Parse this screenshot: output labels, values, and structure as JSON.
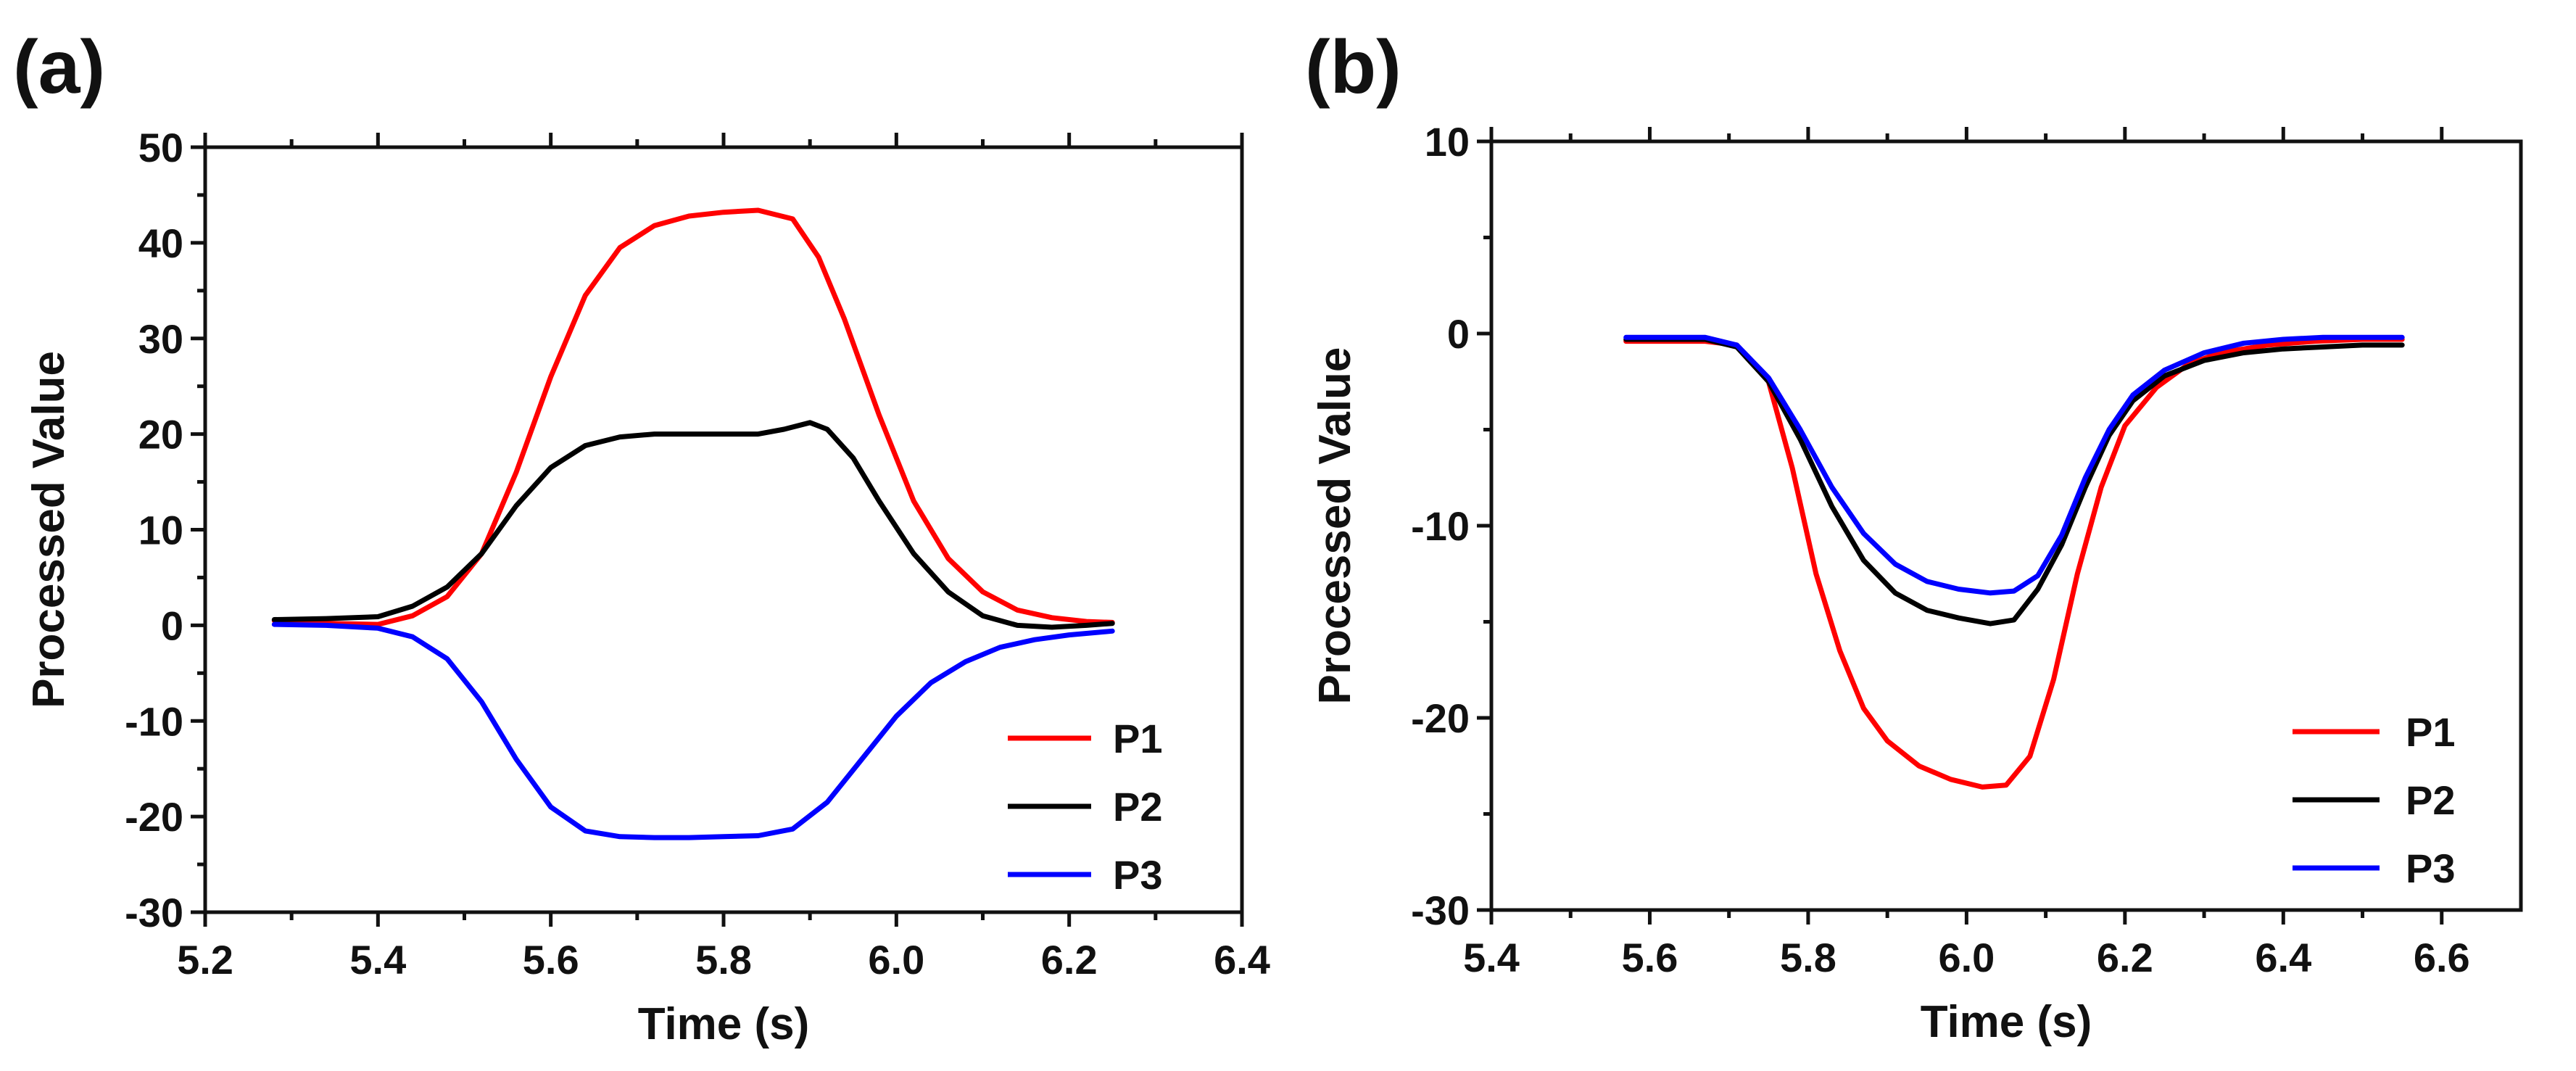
{
  "chart_data": [
    {
      "panel_label": "(a)",
      "type": "line",
      "xlabel": "Time (s)",
      "ylabel": "Processed Value",
      "xlim": [
        5.2,
        6.4
      ],
      "ylim": [
        -30,
        50
      ],
      "xticks": [
        5.2,
        5.4,
        5.6,
        5.8,
        6.0,
        6.2,
        6.4
      ],
      "xtick_labels": [
        "5.2",
        "5.4",
        "5.6",
        "5.8",
        "6.0",
        "6.2",
        "6.4"
      ],
      "yticks": [
        -30,
        -20,
        -10,
        0,
        10,
        20,
        30,
        40,
        50
      ],
      "ytick_labels": [
        "-30",
        "-20",
        "-10",
        "0",
        "10",
        "20",
        "30",
        "40",
        "50"
      ],
      "legend_position": "bottom-right",
      "series": [
        {
          "name": "P1",
          "color": "#ff0000",
          "x": [
            5.28,
            5.34,
            5.4,
            5.44,
            5.48,
            5.52,
            5.56,
            5.6,
            5.64,
            5.68,
            5.72,
            5.76,
            5.8,
            5.84,
            5.88,
            5.91,
            5.94,
            5.98,
            6.02,
            6.06,
            6.1,
            6.14,
            6.18,
            6.22,
            6.25
          ],
          "y": [
            0.5,
            0.2,
            0.1,
            1.0,
            3.0,
            7.5,
            16.0,
            26.0,
            34.5,
            39.5,
            41.8,
            42.8,
            43.2,
            43.4,
            42.5,
            38.5,
            32.0,
            22.0,
            13.0,
            7.0,
            3.5,
            1.6,
            0.8,
            0.4,
            0.3
          ]
        },
        {
          "name": "P2",
          "color": "#000000",
          "x": [
            5.28,
            5.34,
            5.4,
            5.44,
            5.48,
            5.52,
            5.56,
            5.6,
            5.64,
            5.68,
            5.72,
            5.76,
            5.8,
            5.84,
            5.87,
            5.9,
            5.92,
            5.95,
            5.98,
            6.02,
            6.06,
            6.1,
            6.14,
            6.18,
            6.22,
            6.25
          ],
          "y": [
            0.6,
            0.7,
            0.9,
            2.0,
            4.0,
            7.5,
            12.5,
            16.5,
            18.8,
            19.7,
            20.0,
            20.0,
            20.0,
            20.0,
            20.5,
            21.2,
            20.5,
            17.5,
            13.0,
            7.5,
            3.5,
            1.0,
            0.0,
            -0.2,
            0.0,
            0.2
          ]
        },
        {
          "name": "P3",
          "color": "#0000ff",
          "x": [
            5.28,
            5.34,
            5.4,
            5.44,
            5.48,
            5.52,
            5.56,
            5.6,
            5.64,
            5.68,
            5.72,
            5.76,
            5.8,
            5.84,
            5.88,
            5.92,
            5.96,
            6.0,
            6.04,
            6.08,
            6.12,
            6.16,
            6.2,
            6.25
          ],
          "y": [
            0.1,
            0.0,
            -0.3,
            -1.2,
            -3.5,
            -8.0,
            -14.0,
            -19.0,
            -21.5,
            -22.1,
            -22.2,
            -22.2,
            -22.1,
            -22.0,
            -21.3,
            -18.5,
            -14.0,
            -9.5,
            -6.0,
            -3.8,
            -2.3,
            -1.5,
            -1.0,
            -0.6
          ]
        }
      ]
    },
    {
      "panel_label": "(b)",
      "type": "line",
      "xlabel": "Time (s)",
      "ylabel": "Processed Value",
      "xlim": [
        5.4,
        6.7
      ],
      "ylim": [
        -30,
        10
      ],
      "xticks": [
        5.4,
        5.6,
        5.8,
        6.0,
        6.2,
        6.4,
        6.6
      ],
      "xtick_labels": [
        "5.4",
        "5.6",
        "5.8",
        "6.0",
        "6.2",
        "6.4",
        "6.6"
      ],
      "yticks": [
        -30,
        -20,
        -10,
        0,
        10
      ],
      "ytick_labels": [
        "-30",
        "-20",
        "-10",
        "0",
        "10"
      ],
      "legend_position": "bottom-right",
      "series": [
        {
          "name": "P1",
          "color": "#ff0000",
          "x": [
            5.57,
            5.62,
            5.67,
            5.71,
            5.75,
            5.78,
            5.81,
            5.84,
            5.87,
            5.9,
            5.94,
            5.98,
            6.02,
            6.05,
            6.08,
            6.11,
            6.14,
            6.17,
            6.2,
            6.24,
            6.28,
            6.32,
            6.38,
            6.44,
            6.5,
            6.55
          ],
          "y": [
            -0.4,
            -0.4,
            -0.4,
            -0.6,
            -2.5,
            -7.0,
            -12.5,
            -16.5,
            -19.5,
            -21.2,
            -22.5,
            -23.2,
            -23.6,
            -23.5,
            -22.0,
            -18.0,
            -12.5,
            -8.0,
            -4.8,
            -2.8,
            -1.6,
            -1.0,
            -0.6,
            -0.4,
            -0.3,
            -0.3
          ]
        },
        {
          "name": "P2",
          "color": "#000000",
          "x": [
            5.57,
            5.62,
            5.67,
            5.71,
            5.75,
            5.79,
            5.83,
            5.87,
            5.91,
            5.95,
            5.99,
            6.03,
            6.06,
            6.09,
            6.12,
            6.15,
            6.18,
            6.21,
            6.25,
            6.3,
            6.35,
            6.4,
            6.45,
            6.5,
            6.55
          ],
          "y": [
            -0.3,
            -0.3,
            -0.3,
            -0.7,
            -2.5,
            -5.5,
            -9.0,
            -11.8,
            -13.5,
            -14.4,
            -14.8,
            -15.1,
            -14.9,
            -13.3,
            -11.0,
            -8.0,
            -5.3,
            -3.5,
            -2.2,
            -1.4,
            -1.0,
            -0.8,
            -0.7,
            -0.6,
            -0.6
          ]
        },
        {
          "name": "P3",
          "color": "#0000ff",
          "x": [
            5.57,
            5.62,
            5.67,
            5.71,
            5.75,
            5.79,
            5.83,
            5.87,
            5.91,
            5.95,
            5.99,
            6.03,
            6.06,
            6.09,
            6.12,
            6.15,
            6.18,
            6.21,
            6.25,
            6.3,
            6.35,
            6.4,
            6.45,
            6.5,
            6.55
          ],
          "y": [
            -0.2,
            -0.2,
            -0.2,
            -0.6,
            -2.3,
            -5.0,
            -8.0,
            -10.4,
            -12.0,
            -12.9,
            -13.3,
            -13.5,
            -13.4,
            -12.6,
            -10.5,
            -7.5,
            -5.0,
            -3.2,
            -1.9,
            -1.0,
            -0.5,
            -0.3,
            -0.2,
            -0.2,
            -0.2
          ]
        }
      ]
    }
  ]
}
